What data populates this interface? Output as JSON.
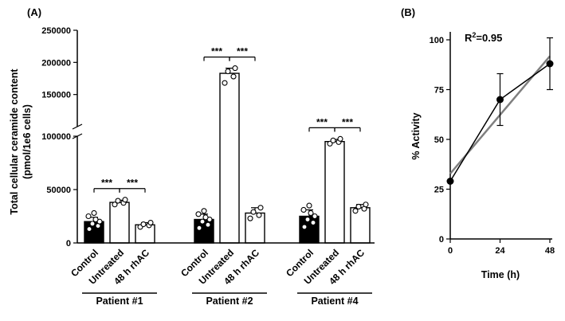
{
  "figure": {
    "panel_a_label": "(A)",
    "panel_b_label": "(B)"
  },
  "chart_data": [
    {
      "type": "bar",
      "panel": "A",
      "ylabel": "Total cellular ceramide content",
      "ylabel_units": "(pmol/1e6 cells)",
      "ylim": [
        0,
        250000
      ],
      "yticks": [
        0,
        50000,
        100000,
        150000,
        200000,
        250000
      ],
      "axis_break": {
        "at": 100000
      },
      "categories": [
        "Control",
        "Untreated",
        "48 h rhAC"
      ],
      "bar_fills": [
        "#000000",
        "#ffffff",
        "#ffffff"
      ],
      "groups": [
        {
          "label": "Patient #1",
          "values": [
            20000,
            38000,
            17000
          ],
          "errors": [
            4000,
            2000,
            2000
          ],
          "replicates": [
            [
              13000,
              16000,
              18000,
              20000,
              22000,
              25000,
              28000
            ],
            [
              36000,
              37500,
              39500,
              40500
            ],
            [
              15000,
              16500,
              17500,
              19000
            ]
          ]
        },
        {
          "label": "Patient #2",
          "values": [
            22000,
            183000,
            28000
          ],
          "errors": [
            5000,
            8000,
            5000
          ],
          "replicates": [
            [
              14000,
              17000,
              20000,
              22000,
              24000,
              27000,
              30000
            ],
            [
              168000,
              178000,
              186000,
              191000
            ],
            [
              23000,
              26000,
              29000,
              33000
            ]
          ]
        },
        {
          "label": "Patient #4",
          "values": [
            25000,
            95000,
            33000
          ],
          "errors": [
            6000,
            2000,
            3000
          ],
          "replicates": [
            [
              15000,
              19000,
              22000,
              25000,
              28000,
              31000,
              35000
            ],
            [
              93000,
              94500,
              96000,
              97500
            ],
            [
              30000,
              32000,
              34000,
              36000
            ]
          ]
        }
      ],
      "significance": [
        {
          "group": 0,
          "pairs": [
            [
              0,
              1
            ],
            [
              1,
              2
            ]
          ],
          "label": "***"
        },
        {
          "group": 1,
          "pairs": [
            [
              0,
              1
            ],
            [
              1,
              2
            ]
          ],
          "label": "***"
        },
        {
          "group": 2,
          "pairs": [
            [
              0,
              1
            ],
            [
              1,
              2
            ]
          ],
          "label": "***"
        }
      ]
    },
    {
      "type": "line",
      "panel": "B",
      "xlabel": "Time (h)",
      "ylabel": "% Activity",
      "x": [
        0,
        24,
        48
      ],
      "values": [
        29,
        70,
        88
      ],
      "errors": [
        0,
        13,
        13
      ],
      "xticks": [
        0,
        24,
        48
      ],
      "yticks": [
        0,
        25,
        50,
        75,
        100
      ],
      "ylim": [
        0,
        104
      ],
      "r_squared": 0.95,
      "annotation": {
        "base": "R",
        "sup": "2",
        "rest": "=0.95",
        "color": "#595959"
      },
      "fit_line": {
        "x0": 0,
        "y0": 32.8,
        "x1": 48,
        "y1": 91.8,
        "color": "#7f7f7f"
      },
      "point_color": "#000000",
      "line_color": "#000000"
    }
  ]
}
